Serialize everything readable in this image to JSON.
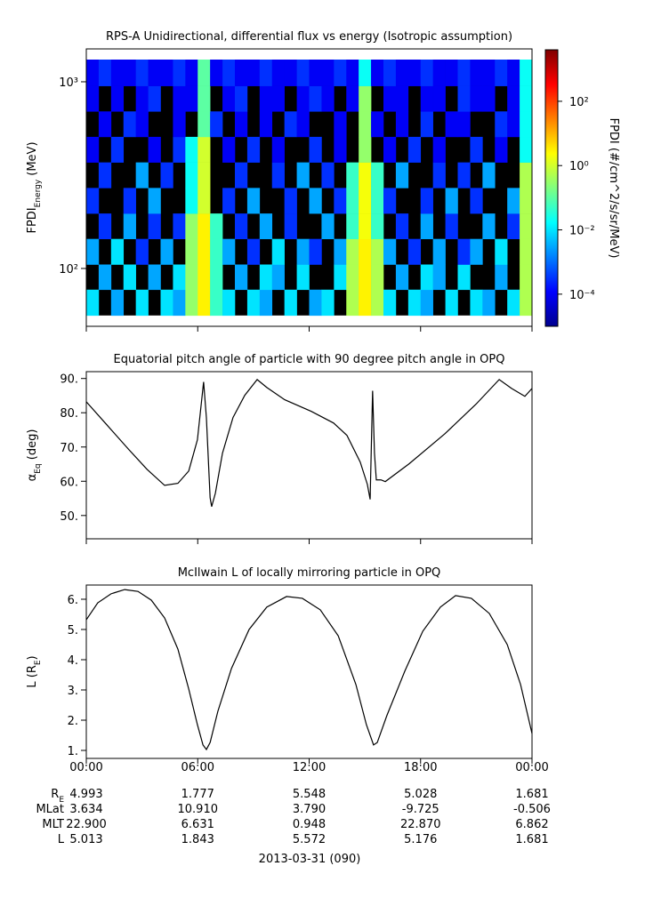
{
  "chart_data": [
    {
      "type": "heatmap",
      "title": "RPS-A Unidirectional, differential flux vs energy (Isotropic assumption)",
      "ylabel": [
        {
          "text": "FPDI"
        },
        {
          "text": "Energy",
          "sub": true
        },
        {
          "text": " (MeV)"
        }
      ],
      "xlim": [
        0,
        1440
      ],
      "xticks": [
        0,
        360,
        720,
        1080,
        1440
      ],
      "ylim": [
        49,
        1500
      ],
      "ylog": true,
      "yticks": [
        {
          "value": 1000,
          "label": "10³"
        },
        {
          "value": 100,
          "label": "10²"
        }
      ],
      "xbins": [
        0,
        40,
        80,
        120,
        160,
        200,
        240,
        280,
        320,
        360,
        400,
        440,
        480,
        520,
        560,
        600,
        640,
        680,
        720,
        760,
        800,
        840,
        880,
        920,
        960,
        1000,
        1040,
        1080,
        1120,
        1160,
        1200,
        1240,
        1280,
        1320,
        1360,
        1400,
        1440
      ],
      "ybins": [
        56,
        77,
        105,
        144,
        197,
        270,
        370,
        507,
        694,
        950,
        1315
      ],
      "z": [
        [
          0.01,
          null,
          0.003,
          null,
          0.01,
          null,
          0.01,
          0.003,
          0.3,
          3,
          0.05,
          0.01,
          null,
          0.01,
          0.003,
          null,
          0.01,
          null,
          0.003,
          0.01,
          null,
          0.5,
          3,
          0.5,
          0.01,
          null,
          0.01,
          0.003,
          null,
          0.01,
          null,
          0.01,
          0.003,
          null,
          0.01,
          0.5
        ],
        [
          null,
          0.003,
          null,
          0.01,
          null,
          0.003,
          null,
          0.01,
          0.3,
          3,
          0.05,
          null,
          0.003,
          null,
          0.01,
          0.003,
          null,
          0.01,
          null,
          null,
          0.01,
          0.5,
          3,
          0.5,
          null,
          0.003,
          null,
          0.01,
          0.003,
          null,
          0.01,
          null,
          null,
          0.003,
          null,
          0.5
        ],
        [
          0.003,
          null,
          0.01,
          null,
          0.0003,
          null,
          0.003,
          null,
          0.3,
          3,
          0.05,
          0.003,
          null,
          0.0003,
          null,
          0.01,
          null,
          0.003,
          0.0003,
          null,
          0.003,
          0.5,
          3,
          0.5,
          0.003,
          null,
          0.0003,
          null,
          0.003,
          null,
          0.0003,
          0.003,
          null,
          0.01,
          null,
          0.5
        ],
        [
          null,
          0.0003,
          null,
          0.003,
          null,
          0.0003,
          null,
          0.0003,
          0.3,
          3,
          0.05,
          null,
          0.0003,
          null,
          0.003,
          null,
          0.0003,
          null,
          null,
          0.003,
          null,
          0.05,
          2,
          0.05,
          null,
          0.0003,
          null,
          0.003,
          null,
          0.0003,
          null,
          null,
          0.003,
          null,
          0.0003,
          0.5
        ],
        [
          0.0003,
          null,
          null,
          0.0003,
          null,
          0.003,
          null,
          null,
          0.02,
          1,
          null,
          0.0003,
          null,
          0.003,
          null,
          null,
          0.0003,
          null,
          0.003,
          null,
          0.0003,
          0.05,
          2,
          0.05,
          0.0003,
          null,
          null,
          0.0003,
          null,
          0.003,
          null,
          0.0003,
          null,
          null,
          0.003,
          0.5
        ],
        [
          null,
          0.0003,
          null,
          null,
          0.003,
          null,
          0.0003,
          null,
          0.02,
          1,
          null,
          null,
          0.0003,
          null,
          null,
          0.0003,
          null,
          0.003,
          null,
          0.0003,
          null,
          0.05,
          2,
          0.05,
          null,
          0.003,
          null,
          null,
          0.0003,
          null,
          0.0003,
          null,
          0.003,
          null,
          null,
          0.5
        ],
        [
          0.0001,
          null,
          0.0003,
          null,
          null,
          0.0001,
          null,
          0.0003,
          0.02,
          1,
          null,
          0.0001,
          null,
          0.0003,
          null,
          0.0001,
          null,
          null,
          0.0003,
          null,
          0.0001,
          null,
          0.3,
          null,
          0.0001,
          null,
          0.0003,
          null,
          0.0001,
          null,
          null,
          0.0003,
          null,
          0.0001,
          null,
          0.02
        ],
        [
          null,
          0.0001,
          null,
          0.0003,
          0.0001,
          null,
          null,
          0.0001,
          null,
          0.1,
          0.0003,
          null,
          0.0001,
          null,
          0.0001,
          null,
          0.0003,
          0.0001,
          null,
          null,
          0.0001,
          null,
          0.3,
          0.0001,
          null,
          0.0001,
          null,
          0.0003,
          null,
          0.0001,
          0.0001,
          null,
          null,
          0.0003,
          0.0001,
          0.02
        ],
        [
          0.0001,
          null,
          0.0001,
          null,
          0.0001,
          0.0003,
          null,
          0.0001,
          0.0001,
          0.1,
          null,
          0.0001,
          0.0003,
          null,
          0.0001,
          0.0001,
          null,
          0.0001,
          0.0003,
          0.0001,
          null,
          0.0001,
          0.3,
          null,
          0.0001,
          0.0001,
          null,
          0.0001,
          0.0001,
          null,
          0.0003,
          0.0001,
          0.0001,
          null,
          0.0001,
          0.02
        ],
        [
          0.0001,
          0.0003,
          0.0001,
          0.0001,
          0.0003,
          0.0001,
          0.0001,
          0.0003,
          0.0001,
          0.1,
          0.0001,
          0.0003,
          0.0001,
          0.0001,
          0.0003,
          0.0001,
          0.0001,
          0.0003,
          0.0001,
          0.0001,
          0.0003,
          0.0001,
          0.02,
          0.0001,
          0.0003,
          0.0001,
          0.0001,
          0.0003,
          0.0001,
          0.0001,
          0.0003,
          0.0001,
          0.0001,
          0.0003,
          0.0001,
          0.02
        ]
      ],
      "zlim": [
        1e-05,
        4000
      ],
      "zlog": true,
      "colormap": "jet",
      "zticks": [
        {
          "value": 100,
          "label": "10²"
        },
        {
          "value": 1,
          "label": "10⁰"
        },
        {
          "value": 0.01,
          "label": "10⁻²"
        },
        {
          "value": 0.0001,
          "label": "10⁻⁴"
        }
      ],
      "zlabel": "FPDI (#/cm^2/s/sr/MeV)"
    },
    {
      "type": "line",
      "title": "Equatorial pitch angle of particle with 90 degree pitch angle in OPQ",
      "ylabel": [
        {
          "text": "α"
        },
        {
          "text": "Eq",
          "sub": true
        },
        {
          "text": " (deg)"
        }
      ],
      "xlim": [
        0,
        1440
      ],
      "xticks": [
        0,
        360,
        720,
        1080,
        1440
      ],
      "ylim": [
        43.2,
        92
      ],
      "yticks": [
        {
          "value": 50,
          "label": "50."
        },
        {
          "value": 60,
          "label": "60."
        },
        {
          "value": 70,
          "label": "70."
        },
        {
          "value": 80,
          "label": "80."
        },
        {
          "value": 90,
          "label": "90."
        }
      ],
      "color": "#000000",
      "x": [
        0,
        66,
        138,
        196,
        253,
        296,
        331,
        359,
        379,
        388,
        400,
        405,
        417,
        440,
        474,
        512,
        552,
        583,
        641,
        727,
        799,
        842,
        885,
        908,
        917,
        925,
        931,
        937,
        952,
        966,
        1043,
        1159,
        1259,
        1334,
        1374,
        1417,
        1440
      ],
      "values": [
        83.2,
        76.5,
        69.2,
        63.5,
        58.8,
        59.4,
        63.0,
        72.1,
        89.0,
        78.6,
        55.2,
        52.6,
        56.5,
        68.2,
        78.6,
        85.1,
        89.7,
        87.4,
        83.8,
        80.4,
        77.0,
        73.4,
        65.6,
        59.1,
        54.7,
        86.4,
        68.2,
        60.4,
        60.4,
        59.9,
        65.1,
        73.9,
        82.5,
        89.7,
        87.1,
        84.8,
        87.1
      ]
    },
    {
      "type": "line",
      "title": "McIlwain L of locally mirroring particle in OPQ",
      "ylabel": [
        {
          "text": "L (R"
        },
        {
          "text": "E",
          "sub": true
        },
        {
          "text": ")"
        }
      ],
      "xlim": [
        0,
        1440
      ],
      "xticks": [
        {
          "value": 0,
          "label": "00:00"
        },
        {
          "value": 360,
          "label": "06:00"
        },
        {
          "value": 720,
          "label": "12:00"
        },
        {
          "value": 1080,
          "label": "18:00"
        },
        {
          "value": 1440,
          "label": "00:00"
        }
      ],
      "ylim": [
        0.735,
        6.47
      ],
      "yticks": [
        {
          "value": 1,
          "label": "1."
        },
        {
          "value": 2,
          "label": "2."
        },
        {
          "value": 3,
          "label": "3."
        },
        {
          "value": 4,
          "label": "4."
        },
        {
          "value": 5,
          "label": "5."
        },
        {
          "value": 6,
          "label": "6."
        }
      ],
      "color": "#000000",
      "x": [
        0,
        37,
        80,
        124,
        167,
        210,
        253,
        296,
        331,
        359,
        377,
        388,
        400,
        425,
        469,
        526,
        583,
        647,
        698,
        756,
        814,
        871,
        905,
        928,
        940,
        971,
        1029,
        1087,
        1144,
        1193,
        1244,
        1302,
        1360,
        1403,
        1440
      ],
      "values": [
        5.32,
        5.88,
        6.18,
        6.32,
        6.26,
        5.97,
        5.38,
        4.35,
        3.03,
        1.85,
        1.18,
        1.03,
        1.26,
        2.29,
        3.71,
        5.0,
        5.74,
        6.09,
        6.03,
        5.65,
        4.79,
        3.18,
        1.85,
        1.18,
        1.26,
        2.15,
        3.62,
        4.94,
        5.74,
        6.12,
        6.03,
        5.53,
        4.5,
        3.18,
        1.56
      ]
    }
  ],
  "ephemeris": [
    {
      "label": [
        {
          "text": "R"
        },
        {
          "text": "E",
          "sub": true
        }
      ],
      "values": [
        "4.993",
        "1.777",
        "5.548",
        "5.028",
        "1.681"
      ]
    },
    {
      "label": [
        {
          "text": "MLat"
        }
      ],
      "values": [
        "3.634",
        "10.910",
        "3.790",
        "-9.725",
        "-0.506"
      ]
    },
    {
      "label": [
        {
          "text": "MLT"
        }
      ],
      "values": [
        "22.900",
        "6.631",
        "0.948",
        "22.870",
        "6.862"
      ]
    },
    {
      "label": [
        {
          "text": "L"
        }
      ],
      "values": [
        "5.013",
        "1.843",
        "5.572",
        "5.176",
        "1.681"
      ]
    }
  ],
  "date": "2013-03-31 (090)"
}
